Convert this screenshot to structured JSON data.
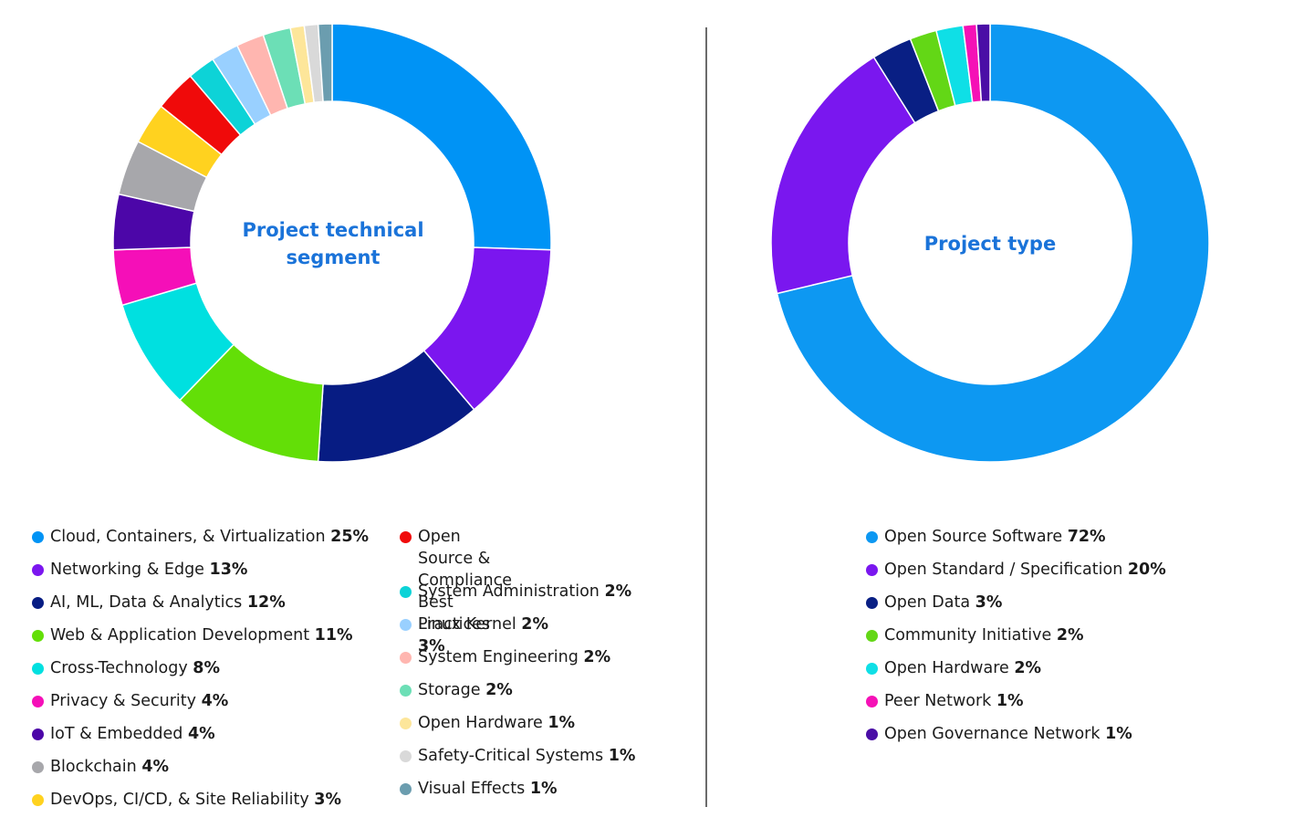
{
  "chart_data": [
    {
      "type": "pie",
      "title": "Project technical segment",
      "title_lines": [
        "Project technical",
        "segment"
      ],
      "series": [
        {
          "name": "Cloud, Containers, & Virtualization",
          "value": 25,
          "pct": "25%",
          "color": "#0093f5"
        },
        {
          "name": "Networking & Edge",
          "value": 13,
          "pct": "13%",
          "color": "#7b16ef"
        },
        {
          "name": "AI, ML, Data & Analytics",
          "value": 12,
          "pct": "12%",
          "color": "#071c83"
        },
        {
          "name": "Web & Application Development",
          "value": 11,
          "pct": "11%",
          "color": "#63df07"
        },
        {
          "name": "Cross-Technology",
          "value": 8,
          "pct": "8%",
          "color": "#00e0e0"
        },
        {
          "name": "Privacy & Security",
          "value": 4,
          "pct": "4%",
          "color": "#f50fb8"
        },
        {
          "name": "IoT & Embedded",
          "value": 4,
          "pct": "4%",
          "color": "#4c06a8"
        },
        {
          "name": "Blockchain",
          "value": 4,
          "pct": "4%",
          "color": "#a7a7ab"
        },
        {
          "name": "DevOps, CI/CD, & Site Reliability",
          "value": 3,
          "pct": "3%",
          "color": "#ffd21f"
        },
        {
          "name": "Open Source & Compliance Best Practices",
          "name_lines": [
            "Open Source & Compliance",
            "Best Practices"
          ],
          "value": 3,
          "pct": "3%",
          "color": "#f00a0a"
        },
        {
          "name": "System Administration",
          "value": 2,
          "pct": "2%",
          "color": "#0dd3d7"
        },
        {
          "name": "Linux Kernel",
          "value": 2,
          "pct": "2%",
          "color": "#99d0ff"
        },
        {
          "name": "System Engineering",
          "value": 2,
          "pct": "2%",
          "color": "#ffb6b0"
        },
        {
          "name": "Storage",
          "value": 2,
          "pct": "2%",
          "color": "#6cdfb6"
        },
        {
          "name": "Open Hardware",
          "value": 1,
          "pct": "1%",
          "color": "#fde69a"
        },
        {
          "name": "Safety-Critical Systems",
          "value": 1,
          "pct": "1%",
          "color": "#d9d9d9"
        },
        {
          "name": "Visual Effects",
          "value": 1,
          "pct": "1%",
          "color": "#6b9daf"
        }
      ]
    },
    {
      "type": "pie",
      "title": "Project type",
      "title_lines": [
        "Project type"
      ],
      "series": [
        {
          "name": "Open Source Software",
          "value": 72,
          "pct": "72%",
          "color": "#0d98f2"
        },
        {
          "name": "Open Standard / Specification",
          "value": 20,
          "pct": "20%",
          "color": "#7a17ef"
        },
        {
          "name": "Open Data",
          "value": 3,
          "pct": "3%",
          "color": "#091f84"
        },
        {
          "name": "Community Initiative",
          "value": 2,
          "pct": "2%",
          "color": "#63d716"
        },
        {
          "name": "Open Hardware",
          "value": 2,
          "pct": "2%",
          "color": "#0fdfe6"
        },
        {
          "name": "Peer Network",
          "value": 1,
          "pct": "1%",
          "color": "#f511b6"
        },
        {
          "name": "Open Governance Network",
          "value": 1,
          "pct": "1%",
          "color": "#4a0ea6"
        }
      ]
    }
  ]
}
